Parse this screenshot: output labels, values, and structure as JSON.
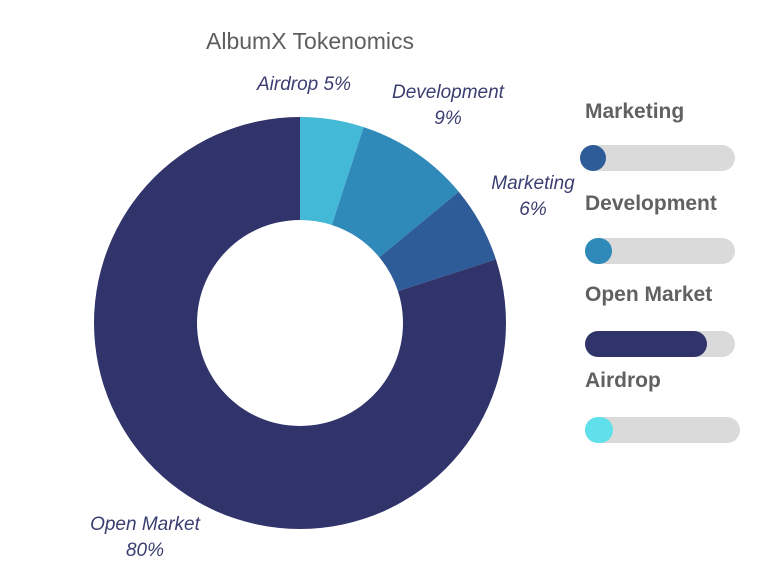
{
  "chart_data": {
    "type": "pie",
    "title": "AlbumX Tokenomics",
    "slices": [
      {
        "label": "Airdrop",
        "value": 5,
        "value_label": "5%",
        "color": "#43b9d6"
      },
      {
        "label": "Development",
        "value": 9,
        "value_label": "9%",
        "color": "#2f8aba"
      },
      {
        "label": "Marketing",
        "value": 6,
        "value_label": "6%",
        "color": "#2e5c98"
      },
      {
        "label": "Open Market",
        "value": 80,
        "value_label": "80%",
        "color": "#31336b"
      }
    ]
  },
  "progress": {
    "items": [
      {
        "label": "Marketing",
        "fill_fraction": 0.09,
        "color": "#2e5c98"
      },
      {
        "label": "Development",
        "fill_fraction": 0.18,
        "color": "#2f8aba"
      },
      {
        "label": "Open Market",
        "fill_fraction": 0.81,
        "color": "#31336b"
      },
      {
        "label": "Airdrop",
        "fill_fraction": 0.18,
        "color": "#5fe0ea"
      }
    ]
  }
}
